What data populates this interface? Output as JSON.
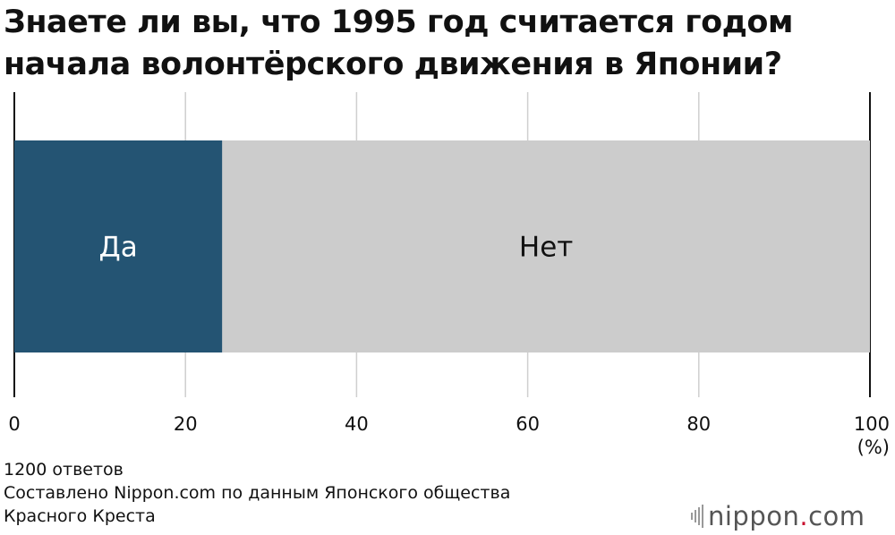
{
  "title_line1": "Знаете ли вы, что 1995 год считается годом",
  "title_line2": "начала волонтёрского движения в Японии?",
  "chart_data": {
    "type": "bar",
    "orientation": "horizontal",
    "stacked": true,
    "title": "Знаете ли вы, что 1995 год считается годом начала волонтёрского движения в Японии?",
    "series": [
      {
        "name": "Да",
        "value": 24.3,
        "color": "#245473",
        "label_color": "#ffffff"
      },
      {
        "name": "Нет",
        "value": 75.7,
        "color": "#cccccc",
        "label_color": "#111111"
      }
    ],
    "xlim": [
      0,
      100
    ],
    "x_ticks": [
      "0",
      "20",
      "40",
      "60",
      "80",
      "100"
    ],
    "x_unit": "(%)",
    "grid": true,
    "gridline_color": "#cfcfcf"
  },
  "notes": {
    "responses": "1200 ответов",
    "source_line1": "Составлено Nippon.com по данным Японского общества",
    "source_line2": "Красного Креста"
  },
  "logo": {
    "word": "nippon",
    "dot": ".",
    "tld": "com",
    "dot_color": "#c8102e"
  }
}
